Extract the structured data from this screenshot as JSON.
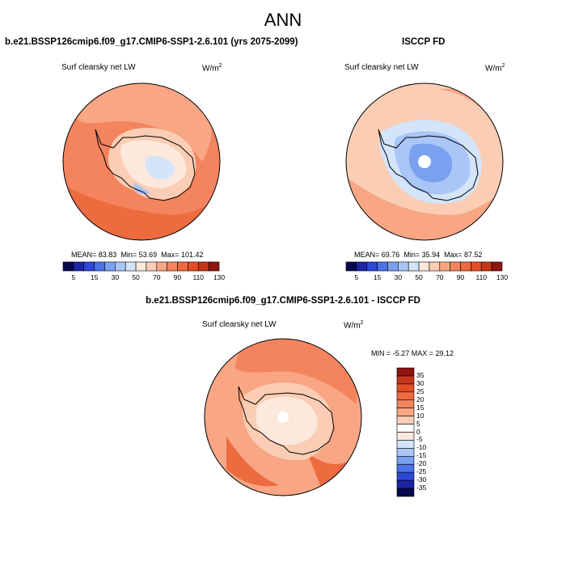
{
  "main_title": "ANN",
  "panels": [
    {
      "case": "b.e21.BSSP126cmip6.f09_g17.CMIP6-SSP1-2.6.101 (yrs 2075-2099)",
      "variable": "Surf clearsky net LW",
      "units_base": "W/m",
      "units_exp": "2",
      "stats": {
        "mean": "83.83",
        "min": "53.69",
        "max": "101.42"
      },
      "stat_labels": {
        "mean": "MEAN=",
        "min": "Min=",
        "max": "Max="
      }
    },
    {
      "case": "ISCCP FD",
      "variable": "Surf clearsky net LW",
      "units_base": "W/m",
      "units_exp": "2",
      "stats": {
        "mean": "69.76",
        "min": "35.94",
        "max": "87.52"
      },
      "stat_labels": {
        "mean": "MEAN=",
        "min": "Min=",
        "max": "Max="
      }
    }
  ],
  "diff_panel": {
    "case": "b.e21.BSSP126cmip6.f09_g17.CMIP6-SSP1-2.6.101 - ISCCP FD",
    "variable": "Surf clearsky net LW",
    "units_base": "W/m",
    "units_exp": "2",
    "minmax": "MIN = -5.27 MAX = 29.12"
  },
  "colorbar_abs": {
    "labels": [
      "5",
      "15",
      "30",
      "50",
      "70",
      "90",
      "110",
      "130"
    ],
    "colors": [
      "#08084f",
      "#1d24a6",
      "#2d47d6",
      "#4b72e8",
      "#7aa0f0",
      "#a9c6f7",
      "#d4e4fb",
      "#fde8dc",
      "#fbcdb4",
      "#f8a684",
      "#f3845e",
      "#ee6a3f",
      "#e24d25",
      "#c5361b",
      "#8f1510"
    ]
  },
  "colorbar_diff": {
    "labels": [
      "35",
      "30",
      "25",
      "20",
      "15",
      "10",
      "5",
      "0",
      "-5",
      "-10",
      "-15",
      "-20",
      "-25",
      "-30",
      "-35"
    ],
    "colors": [
      "#8f1510",
      "#c5361b",
      "#e24d25",
      "#ee6a3f",
      "#f3845e",
      "#f8a684",
      "#fbcdb4",
      "#fde8dc",
      "#d4e4fb",
      "#a9c6f7",
      "#7aa0f0",
      "#4b72e8",
      "#2d47d6",
      "#1d24a6",
      "#08084f"
    ]
  }
}
